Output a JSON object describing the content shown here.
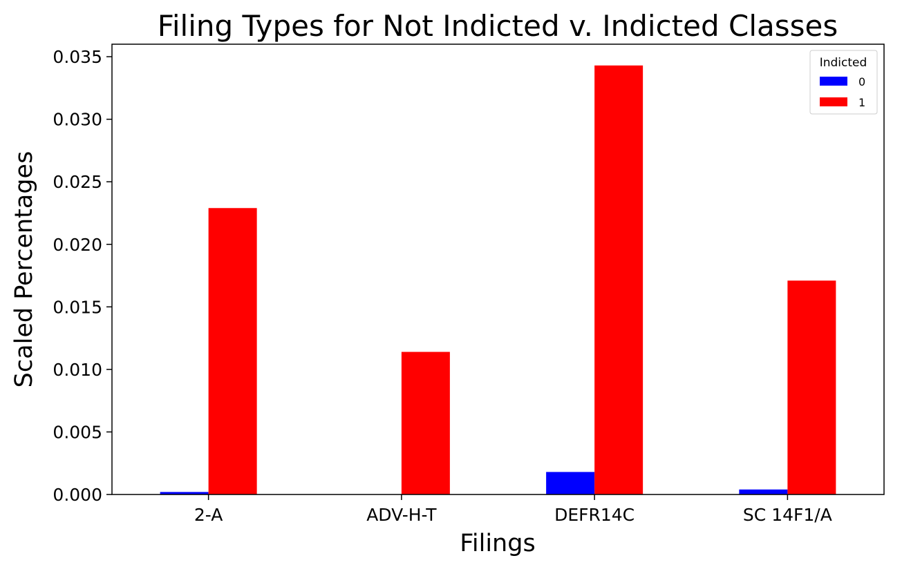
{
  "chart_data": {
    "type": "bar",
    "title": "Filing Types for Not Indicted v. Indicted Classes",
    "xlabel": "Filings",
    "ylabel": "Scaled Percentages",
    "categories": [
      "2-A",
      "ADV-H-T",
      "DEFR14C",
      "SC 14F1/A"
    ],
    "series": [
      {
        "name": "0",
        "color": "#0000ff",
        "values": [
          0.0002,
          0.0,
          0.0018,
          0.0004
        ]
      },
      {
        "name": "1",
        "color": "#ff0000",
        "values": [
          0.0229,
          0.0114,
          0.0343,
          0.0171
        ]
      }
    ],
    "ylim": [
      0,
      0.036
    ],
    "yticks": [
      "0.000",
      "0.005",
      "0.010",
      "0.015",
      "0.020",
      "0.025",
      "0.030",
      "0.035"
    ],
    "grid": false,
    "legend": {
      "title": "Indicted",
      "position": "top-right"
    }
  }
}
